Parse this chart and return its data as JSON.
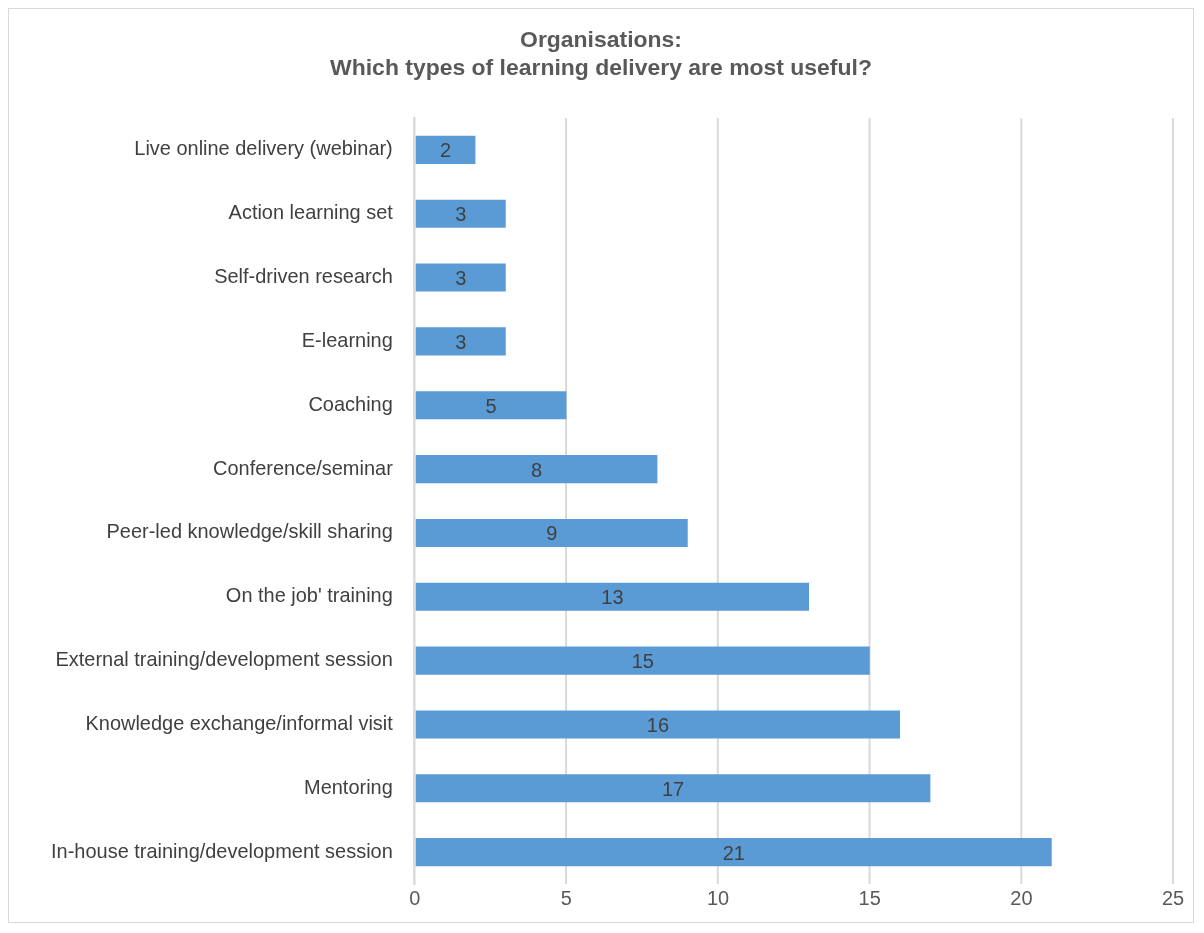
{
  "chart_data": {
    "type": "bar",
    "orientation": "horizontal",
    "title": "Organisations:\nWhich types of learning delivery are most useful?",
    "categories": [
      "Live online delivery (webinar)",
      "Action learning set",
      "Self-driven research",
      "E-learning",
      "Coaching",
      "Conference/seminar",
      "Peer-led knowledge/skill sharing",
      "On the job' training",
      "External training/development session",
      "Knowledge exchange/informal visit",
      "Mentoring",
      "In-house training/development session"
    ],
    "values": [
      2,
      3,
      3,
      3,
      5,
      8,
      9,
      13,
      15,
      16,
      17,
      21
    ],
    "color": "#5b9bd5",
    "xlim": [
      0,
      25
    ],
    "xticks": [
      0,
      5,
      10,
      15,
      20,
      25
    ],
    "grid": "x",
    "data_labels": true,
    "legend": false
  }
}
